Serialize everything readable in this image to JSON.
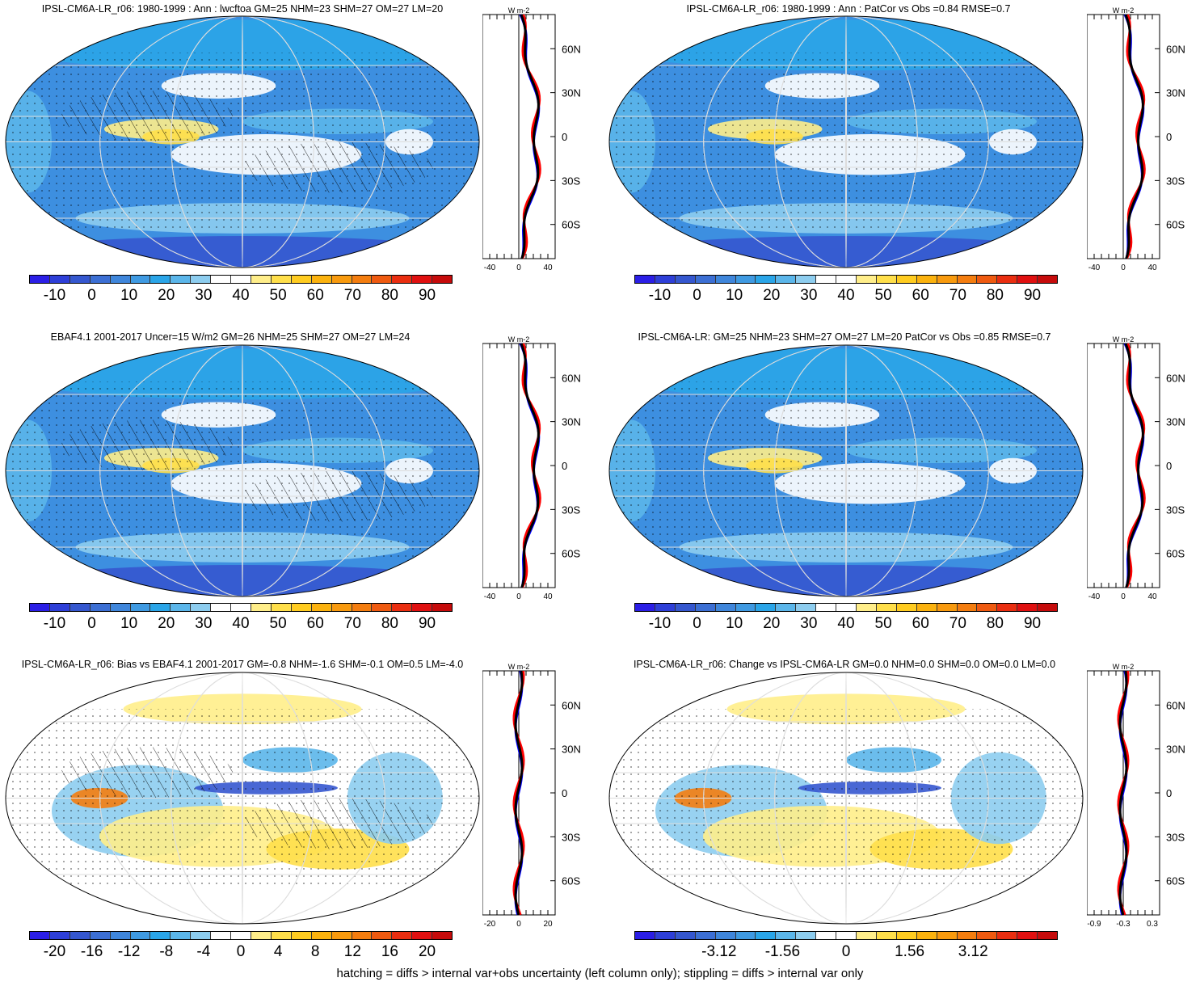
{
  "panels": [
    {
      "title": "IPSL-CM6A-LR_r06: 1980-1999 : Ann : lwcftoa GM=25 NHM=23 SHM=27 OM=27 LM=20",
      "scale": "abs",
      "colorbar_labels": [
        "-10",
        "0",
        "10",
        "20",
        "30",
        "40",
        "50",
        "60",
        "70",
        "80",
        "90"
      ],
      "zonal_unit": "W m-2",
      "zonal_xticks": [
        "-40",
        "0",
        "40"
      ],
      "zonal_lat_labels": [
        "60N",
        "30N",
        "0",
        "30S",
        "60S"
      ],
      "hatched": true
    },
    {
      "title": "IPSL-CM6A-LR_r06: 1980-1999 : Ann : PatCor vs Obs =0.84 RMSE=0.7",
      "scale": "abs",
      "colorbar_labels": [
        "-10",
        "0",
        "10",
        "20",
        "30",
        "40",
        "50",
        "60",
        "70",
        "80",
        "90"
      ],
      "zonal_unit": "W m-2",
      "zonal_xticks": [
        "-40",
        "0",
        "40"
      ],
      "zonal_lat_labels": [
        "60N",
        "30N",
        "0",
        "30S",
        "60S"
      ],
      "hatched": false
    },
    {
      "title": "EBAF4.1 2001-2017 Uncer=15 W/m2 GM=26 NHM=25 SHM=27 OM=27 LM=24",
      "scale": "abs",
      "colorbar_labels": [
        "-10",
        "0",
        "10",
        "20",
        "30",
        "40",
        "50",
        "60",
        "70",
        "80",
        "90"
      ],
      "zonal_unit": "W m-2",
      "zonal_xticks": [
        "-40",
        "0",
        "40"
      ],
      "zonal_lat_labels": [
        "60N",
        "30N",
        "0",
        "30S",
        "60S"
      ],
      "hatched": true
    },
    {
      "title": "IPSL-CM6A-LR: GM=25 NHM=23 SHM=27 OM=27 LM=20 PatCor vs Obs =0.85 RMSE=0.7",
      "scale": "abs",
      "colorbar_labels": [
        "-10",
        "0",
        "10",
        "20",
        "30",
        "40",
        "50",
        "60",
        "70",
        "80",
        "90"
      ],
      "zonal_unit": "W m-2",
      "zonal_xticks": [
        "-40",
        "0",
        "40"
      ],
      "zonal_lat_labels": [
        "60N",
        "30N",
        "0",
        "30S",
        "60S"
      ],
      "hatched": false
    },
    {
      "title": "IPSL-CM6A-LR_r06: Bias vs EBAF4.1 2001-2017 GM=-0.8 NHM=-1.6 SHM=-0.1 OM=0.5 LM=-4.0",
      "scale": "diff",
      "colorbar_labels": [
        "-20",
        "-16",
        "-12",
        "-8",
        "-4",
        "0",
        "4",
        "8",
        "12",
        "16",
        "20"
      ],
      "zonal_unit": "W m-2",
      "zonal_xticks": [
        "-20",
        "0",
        "20"
      ],
      "zonal_lat_labels": [
        "60N",
        "30N",
        "0",
        "30S",
        "60S"
      ],
      "hatched": true
    },
    {
      "title": "IPSL-CM6A-LR_r06: Change vs IPSL-CM6A-LR GM=0.0 NHM=0.0 SHM=0.0 OM=0.0 LM=0.0",
      "scale": "diff",
      "colorbar_labels": [
        "-3.12",
        "-1.56",
        "0",
        "1.56",
        "3.12"
      ],
      "zonal_unit": "W m-2",
      "zonal_xticks": [
        "-0.9",
        "-0.3",
        "0.3"
      ],
      "zonal_lat_labels": [
        "60N",
        "30N",
        "0",
        "30S",
        "60S"
      ],
      "hatched": false
    }
  ],
  "colors": {
    "abs_scale": [
      "#2b1ee6",
      "#2e3fd8",
      "#3557cf",
      "#3c6fd4",
      "#3f86db",
      "#3f9ae2",
      "#2aa5e8",
      "#5bb6ea",
      "#8dcdef",
      "#ffffff",
      "#ffffff",
      "#ffee8a",
      "#ffdf4a",
      "#ffcc20",
      "#fbb20e",
      "#f89a0e",
      "#f47d0f",
      "#ef5a10",
      "#ea2e10",
      "#e01010",
      "#c60b0b"
    ],
    "diff_scale": [
      "#2b1ee6",
      "#2e3fd8",
      "#3557cf",
      "#3c6fd4",
      "#3f86db",
      "#3f9ae2",
      "#2aa5e8",
      "#5bb6ea",
      "#8dcdef",
      "#ffffff",
      "#ffffff",
      "#ffee8a",
      "#ffdf4a",
      "#ffcc20",
      "#fbb20e",
      "#f89a0e",
      "#f47d0f",
      "#ef5a10",
      "#ea2e10",
      "#e01010",
      "#c60b0b"
    ],
    "zonal_model": "#ff0000",
    "zonal_obs": "#0000ff",
    "zonal_ref": "#000000"
  },
  "footer": "hatching = diffs > internal var+obs uncertainty (left column only); stippling = diffs > internal var only"
}
